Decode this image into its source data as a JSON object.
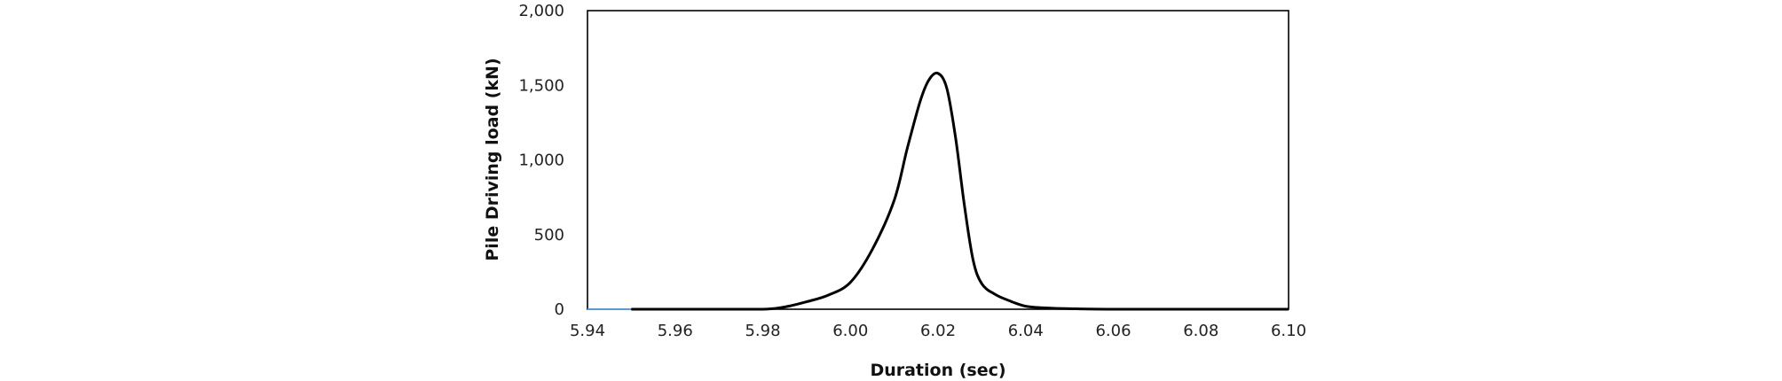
{
  "chart_data": {
    "type": "line",
    "xlabel": "Duration (sec)",
    "ylabel": "Pile Driving load (kN)",
    "xlim": [
      5.94,
      6.1
    ],
    "ylim": [
      0,
      2000
    ],
    "x_ticks": [
      "5.94",
      "5.96",
      "5.98",
      "6.00",
      "6.02",
      "6.04",
      "6.06",
      "6.08",
      "6.10"
    ],
    "y_ticks": [
      "0",
      "500",
      "1,000",
      "1,500",
      "2,000"
    ],
    "grid": false,
    "legend": "none",
    "series": [
      {
        "color": "#5b9bd5",
        "x": [
          5.94,
          5.95
        ],
        "y": [
          0,
          0
        ]
      },
      {
        "color": "#000000",
        "x": [
          5.95,
          5.97,
          5.98,
          5.985,
          5.99,
          5.995,
          6.0,
          6.005,
          6.01,
          6.013,
          6.016,
          6.018,
          6.02,
          6.022,
          6.024,
          6.026,
          6.028,
          6.03,
          6.033,
          6.036,
          6.04,
          6.045,
          6.05,
          6.06,
          6.1
        ],
        "y": [
          0,
          0,
          0,
          15,
          50,
          95,
          180,
          400,
          730,
          1080,
          1400,
          1540,
          1580,
          1480,
          1150,
          700,
          330,
          170,
          100,
          60,
          20,
          8,
          4,
          0,
          0
        ]
      }
    ]
  }
}
